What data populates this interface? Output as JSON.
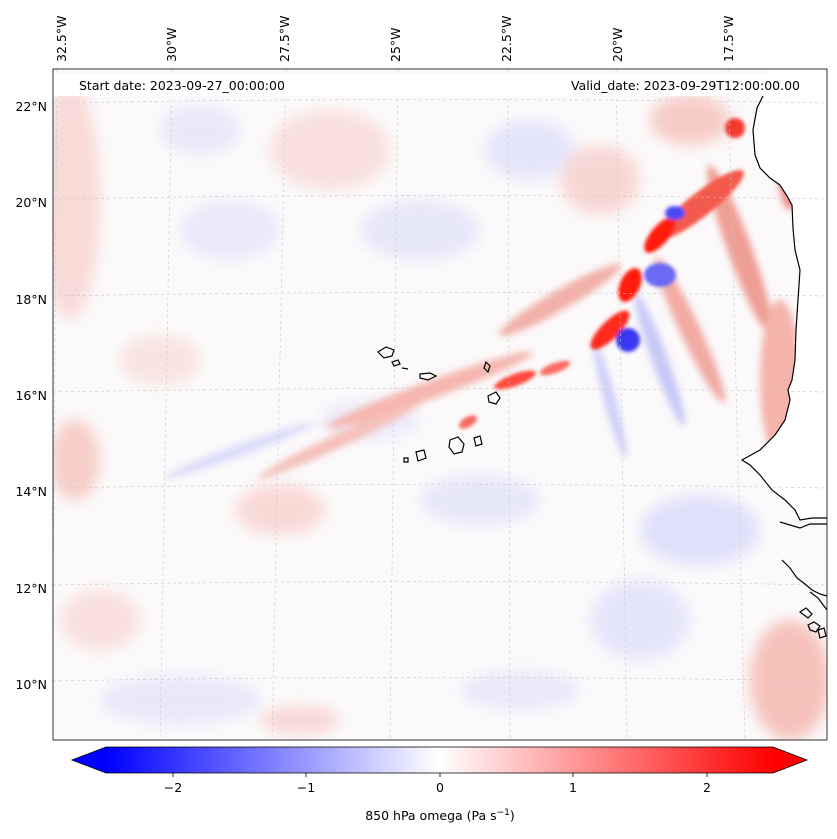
{
  "map": {
    "annotations": {
      "start": "Start date: 2023-09-27_00:00:00",
      "valid": "Valid_date: 2023-09-29T12:00:00.00"
    },
    "lon_labels": [
      "32.5°W",
      "30°W",
      "27.5°W",
      "25°W",
      "22.5°W",
      "20°W",
      "17.5°W"
    ],
    "lat_labels": [
      "22°N",
      "20°N",
      "18°N",
      "16°N",
      "14°N",
      "12°N",
      "10°N"
    ],
    "field": {
      "variable": "850 hPa omega",
      "colormap": "bwr",
      "positive_color": "#ff0000",
      "negative_color": "#0000ff",
      "zero_color": "#ffffff"
    }
  },
  "colorbar": {
    "label_main": "850 hPa omega (Pa s",
    "label_exp": "−1",
    "label_close": ")",
    "ticks": [
      "−2",
      "−1",
      "0",
      "1",
      "2"
    ],
    "range": [
      -2.75,
      2.75
    ],
    "extend": "both"
  }
}
